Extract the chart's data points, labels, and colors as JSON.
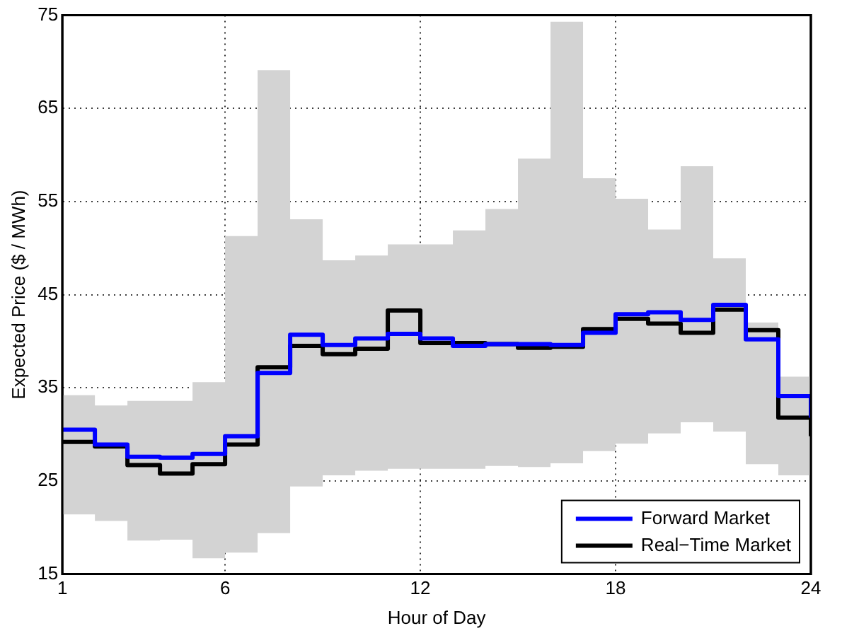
{
  "chart_data": {
    "type": "step",
    "xlabel": "Hour of Day",
    "ylabel": "Expected Price ($ / MWh)",
    "x": [
      1,
      2,
      3,
      4,
      5,
      6,
      7,
      8,
      9,
      10,
      11,
      12,
      13,
      14,
      15,
      16,
      17,
      18,
      19,
      20,
      21,
      22,
      23,
      24
    ],
    "series": [
      {
        "name": "Forward Market",
        "color": "#0000ff",
        "values": [
          30.5,
          28.9,
          27.6,
          27.5,
          27.9,
          29.8,
          36.6,
          40.7,
          39.6,
          40.3,
          40.8,
          40.3,
          39.5,
          39.7,
          39.7,
          39.6,
          40.9,
          42.9,
          43.1,
          42.3,
          43.9,
          40.2,
          34.1,
          31.8
        ]
      },
      {
        "name": "Real−Time Market",
        "color": "#000000",
        "values": [
          29.2,
          28.7,
          26.7,
          25.8,
          26.8,
          28.9,
          37.2,
          39.5,
          38.6,
          39.2,
          43.3,
          39.8,
          39.8,
          39.7,
          39.3,
          39.4,
          41.3,
          42.4,
          41.9,
          40.9,
          43.4,
          41.2,
          31.8,
          29.8
        ],
        "lower": [
          21.4,
          20.7,
          18.6,
          18.7,
          16.7,
          17.3,
          19.4,
          24.4,
          25.6,
          26.1,
          26.3,
          26.3,
          26.3,
          26.6,
          26.5,
          26.9,
          28.2,
          29.0,
          30.1,
          31.3,
          30.3,
          26.8,
          25.6,
          25.6
        ],
        "upper": [
          34.2,
          33.1,
          33.6,
          33.6,
          35.6,
          51.3,
          69.1,
          53.1,
          48.7,
          49.2,
          50.4,
          50.4,
          51.9,
          54.2,
          59.6,
          74.3,
          57.5,
          55.3,
          52.0,
          58.8,
          48.9,
          42.0,
          36.2,
          36.2
        ]
      }
    ],
    "xlim": [
      1,
      24
    ],
    "xticks": [
      1,
      6,
      12,
      18,
      24
    ],
    "ylim": [
      15,
      75
    ],
    "yticks": [
      15,
      25,
      35,
      45,
      55,
      65,
      75
    ],
    "grid": true,
    "legend": "bottom right",
    "line_style": "solid",
    "marker": "none"
  }
}
